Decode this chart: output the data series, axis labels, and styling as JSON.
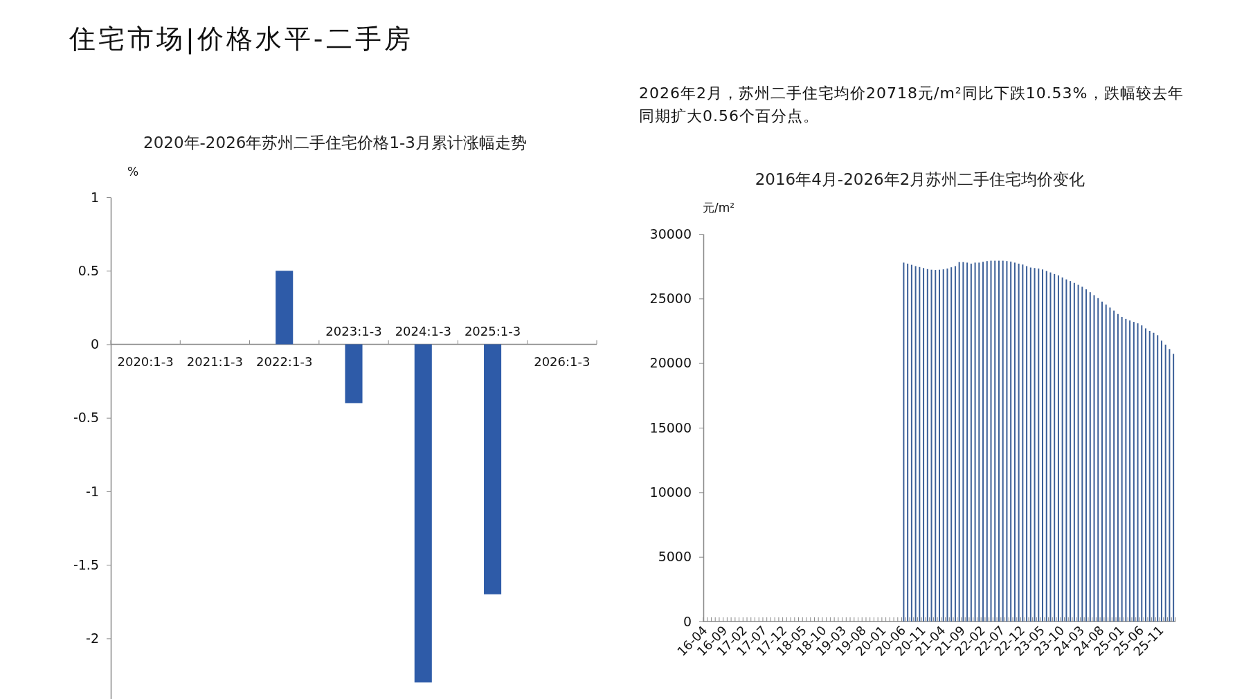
{
  "chart_data": [
    {
      "type": "bar",
      "title": "2020年-2026年苏州二手住宅价格1-3月累计涨幅走势",
      "ylabel": "%",
      "annotations": [
        "住宅市场|价格水平-二手房"
      ],
      "categories": [
        "2020:1-3",
        "2021:1-3",
        "2022:1-3",
        "2023:1-3",
        "2024:1-3",
        "2025:1-3",
        "2026:1-3"
      ],
      "values": [
        null,
        null,
        0.5,
        -0.4,
        -2.3,
        -1.7,
        null
      ],
      "color": "#2e5ba8",
      "ylim": [
        -2.45,
        1
      ],
      "yticks": [
        {
          "value": 1,
          "label": "1"
        },
        {
          "value": 0.5,
          "label": "0.5"
        },
        {
          "value": 0,
          "label": "0"
        },
        {
          "value": -0.5,
          "label": "-0.5"
        },
        {
          "value": -1,
          "label": "-1"
        },
        {
          "value": -1.5,
          "label": "-1.5"
        },
        {
          "value": -2,
          "label": "-2"
        }
      ],
      "grid": false
    },
    {
      "type": "bar",
      "title": "2016年4月-2026年2月苏州二手住宅均价变化",
      "ylabel": "元/m²",
      "annotations": [
        "2026年2月，苏州二手住宅均价20718元/m²同比下跌10.53%，跌幅较去年同期扩大0.56个百分点。"
      ],
      "categories": [
        "16-04",
        null,
        null,
        null,
        null,
        "16-09",
        null,
        null,
        null,
        null,
        "17-02",
        null,
        null,
        null,
        null,
        "17-07",
        null,
        null,
        null,
        null,
        "17-12",
        null,
        null,
        null,
        null,
        "18-05",
        null,
        null,
        null,
        null,
        "18-10",
        null,
        null,
        null,
        null,
        "19-03",
        null,
        null,
        null,
        null,
        "19-08",
        null,
        null,
        null,
        null,
        "20-01",
        null,
        null,
        null,
        null,
        "20-06",
        null,
        null,
        null,
        null,
        "20-11",
        null,
        null,
        null,
        null,
        "21-04",
        null,
        null,
        null,
        null,
        "21-09",
        null,
        null,
        null,
        null,
        "22-02",
        null,
        null,
        null,
        null,
        "22-07",
        null,
        null,
        null,
        null,
        "22-12",
        null,
        null,
        null,
        null,
        "23-05",
        null,
        null,
        null,
        null,
        "23-10",
        null,
        null,
        null,
        null,
        "24-03",
        null,
        null,
        null,
        null,
        "24-08",
        null,
        null,
        null,
        null,
        "25-01",
        null,
        null,
        null,
        null,
        "25-06",
        null,
        null,
        null,
        null,
        "25-11",
        null,
        null,
        null
      ],
      "values": [
        null,
        null,
        null,
        null,
        null,
        null,
        null,
        null,
        null,
        null,
        null,
        null,
        null,
        null,
        null,
        null,
        null,
        null,
        null,
        null,
        null,
        null,
        null,
        null,
        null,
        null,
        null,
        null,
        null,
        null,
        null,
        null,
        null,
        null,
        null,
        null,
        null,
        null,
        null,
        null,
        null,
        null,
        null,
        null,
        null,
        null,
        null,
        null,
        null,
        null,
        27780,
        27700,
        27610,
        27510,
        27440,
        27360,
        27280,
        27230,
        27210,
        27230,
        27260,
        27320,
        27420,
        27510,
        27820,
        27820,
        27780,
        27700,
        27780,
        27780,
        27840,
        27900,
        27930,
        27930,
        27930,
        27930,
        27900,
        27860,
        27780,
        27700,
        27630,
        27510,
        27400,
        27360,
        27320,
        27250,
        27130,
        27020,
        26900,
        26790,
        26630,
        26480,
        26350,
        26210,
        26060,
        25910,
        25710,
        25490,
        25260,
        25030,
        24760,
        24530,
        24300,
        24070,
        23800,
        23570,
        23420,
        23300,
        23190,
        23080,
        22920,
        22690,
        22500,
        22350,
        22160,
        21740,
        21430,
        21090,
        20720
      ],
      "color": "#3b5f98",
      "ylim": [
        0,
        30000
      ],
      "yticks": [
        0,
        5000,
        10000,
        15000,
        20000,
        25000,
        30000
      ],
      "grid": false
    }
  ]
}
